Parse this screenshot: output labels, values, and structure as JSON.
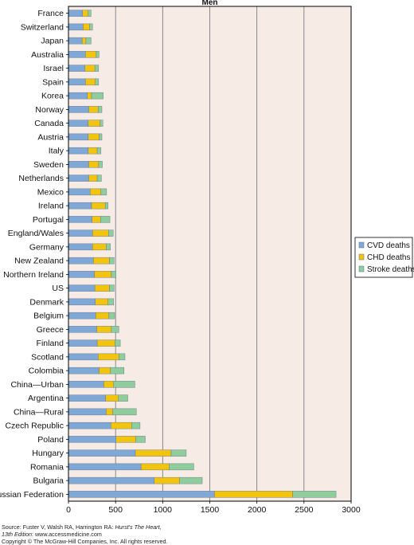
{
  "chart_data": {
    "type": "bar",
    "orientation": "horizontal",
    "stacked": true,
    "title": "Men",
    "categories": [
      "France",
      "Switzerland",
      "Japan",
      "Australia",
      "Israel",
      "Spain",
      "Korea",
      "Norway",
      "Canada",
      "Austria",
      "Italy",
      "Sweden",
      "Netherlands",
      "Mexico",
      "Ireland",
      "Portugal",
      "England/Wales",
      "Germany",
      "New Zealand",
      "Northern Ireland",
      "US",
      "Denmark",
      "Belgium",
      "Greece",
      "Finland",
      "Scotland",
      "Colombia",
      "China—Urban",
      "Argentina",
      "China—Rural",
      "Czech Republic",
      "Poland",
      "Hungary",
      "Romania",
      "Bulgaria",
      "Russian Federation"
    ],
    "series": [
      {
        "name": "CVD deaths",
        "color": "#7fa8d6",
        "values": [
          150,
          155,
          145,
          180,
          175,
          180,
          200,
          215,
          210,
          210,
          210,
          215,
          215,
          230,
          245,
          250,
          255,
          255,
          265,
          275,
          280,
          285,
          290,
          300,
          305,
          315,
          325,
          375,
          395,
          400,
          450,
          505,
          710,
          770,
          910,
          1550
        ]
      },
      {
        "name": "CHD deaths",
        "color": "#f2c40d",
        "values": [
          60,
          70,
          40,
          115,
          105,
          105,
          45,
          100,
          125,
          115,
          95,
          105,
          90,
          115,
          145,
          90,
          170,
          145,
          170,
          180,
          155,
          135,
          140,
          155,
          190,
          220,
          120,
          105,
          135,
          70,
          220,
          210,
          380,
          300,
          270,
          830
        ]
      },
      {
        "name": "Stroke deaths",
        "color": "#8fcd9c",
        "values": [
          30,
          30,
          55,
          30,
          40,
          35,
          125,
          40,
          30,
          30,
          40,
          40,
          45,
          60,
          30,
          100,
          50,
          45,
          50,
          50,
          50,
          60,
          60,
          80,
          55,
          65,
          145,
          225,
          100,
          250,
          90,
          100,
          160,
          260,
          240,
          460
        ]
      }
    ],
    "xlim": [
      0,
      3000
    ],
    "xticks": [
      0,
      500,
      1000,
      1500,
      2000,
      2500,
      3000
    ],
    "grid": "vertical",
    "legend_position": "right"
  },
  "source_text": {
    "line1_prefix": "Source: Fuster V, Walsh RA, Harrington RA: ",
    "line1_italic": "Hurst's The Heart,",
    "line2_italic": "13th Edition",
    "line2_suffix": ": www.accessmedicine.com",
    "line3": "Copyright © The McGraw-Hill Companies, Inc. All rights reserved."
  }
}
